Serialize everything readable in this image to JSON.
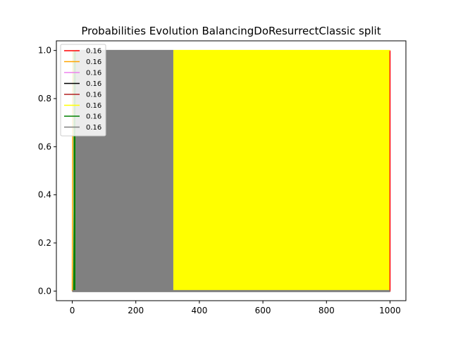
{
  "chart_data": {
    "type": "area",
    "title": "Probabilities Evolution BalancingDoResurrectClassic split",
    "xlabel": "",
    "ylabel": "",
    "xlim": [
      -50,
      1050
    ],
    "ylim": [
      -0.04,
      1.04
    ],
    "xticks": [
      "0",
      "200",
      "400",
      "600",
      "800",
      "1000"
    ],
    "yticks": [
      "0.0",
      "0.2",
      "0.4",
      "0.6",
      "0.8",
      "1.0"
    ],
    "xtick_values": [
      0,
      200,
      400,
      600,
      800,
      1000
    ],
    "ytick_values": [
      0.0,
      0.2,
      0.4,
      0.6,
      0.8,
      1.0
    ],
    "grid": false,
    "legend_placement": "top-left",
    "series": [
      {
        "name": "0.16",
        "color": "#ff0000",
        "x": [
          0,
          1000,
          1000
        ],
        "y": [
          0.0,
          0.0,
          1.0
        ]
      },
      {
        "name": "0.16",
        "color": "#ffa500",
        "x": [
          0,
          2
        ],
        "y": [
          0.0,
          1.0
        ]
      },
      {
        "name": "0.16",
        "color": "#ee82ee",
        "x": [
          0,
          1000
        ],
        "y": [
          0.0,
          0.0
        ]
      },
      {
        "name": "0.16",
        "color": "#000000",
        "x": [
          0,
          1000
        ],
        "y": [
          0.0,
          0.0
        ]
      },
      {
        "name": "0.16",
        "color": "#b22222",
        "x": [
          0,
          1000
        ],
        "y": [
          0.0,
          0.0
        ]
      },
      {
        "name": "0.16",
        "color": "#ffff00",
        "x": [
          318,
          1000
        ],
        "y": [
          1.0,
          1.0
        ]
      },
      {
        "name": "0.16",
        "color": "#008000",
        "x": [
          4,
          10
        ],
        "y": [
          0.0,
          1.0
        ]
      },
      {
        "name": "0.16",
        "color": "#808080",
        "x": [
          10,
          318
        ],
        "y": [
          1.0,
          1.0
        ]
      }
    ]
  }
}
